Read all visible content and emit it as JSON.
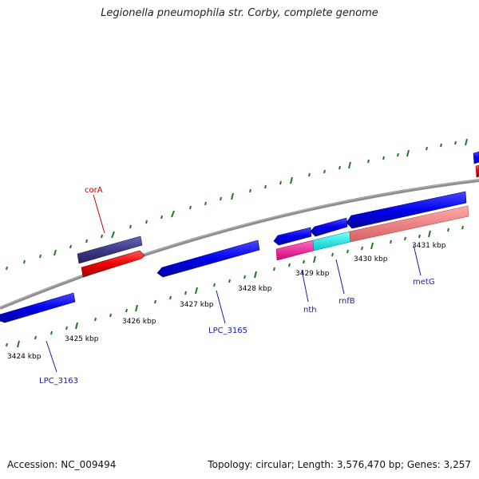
{
  "title": "Legionella pneumophila str. Corby, complete genome",
  "footer": {
    "accession": "Accession: NC_009494",
    "summary": "Topology: circular; Length: 3,576,470 bp; Genes: 3,257"
  },
  "ticks": {
    "t3424": "3424 kbp",
    "t3425": "3425 kbp",
    "t3426": "3426 kbp",
    "t3427": "3427 kbp",
    "t3428": "3428 kbp",
    "t3429": "3429 kbp",
    "t3430": "3430 kbp",
    "t3431": "3431 kbp"
  },
  "genes": {
    "corA": "corA",
    "lpc3163": "LPC_3163",
    "lpc3165": "LPC_3165",
    "nth": "nth",
    "rnfB": "rnfB",
    "metG": "metG"
  },
  "colors": {
    "backbone": "#888888",
    "tick_green": "#1f7a1f",
    "forward_gene": "#0000ee",
    "reverse_gene": "#ee0000",
    "cog_purple": "#3d3a8a",
    "pink": "#ee1e90",
    "cyan": "#00eeee",
    "salmon": "#ee8080"
  }
}
